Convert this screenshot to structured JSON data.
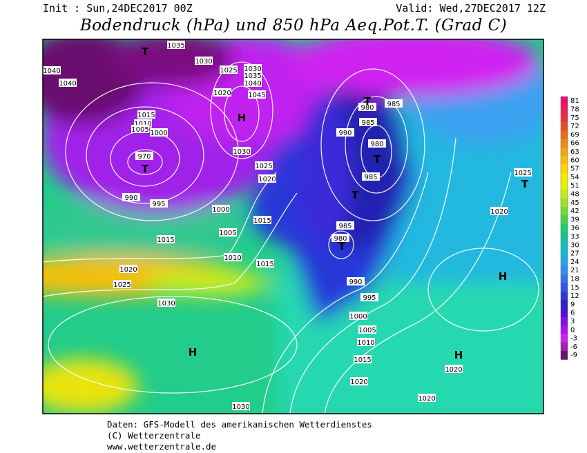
{
  "header": {
    "init": "Init : Sun,24DEC2017 00Z",
    "valid": "Valid: Wed,27DEC2017 12Z",
    "title": "Bodendruck (hPa) und 850 hPa Aeq.Pot.T. (Grad C)"
  },
  "map": {
    "isobar_labels": [
      1035,
      1030,
      1040,
      1040,
      1025,
      1030,
      1035,
      1040,
      1045,
      1020,
      1015,
      1010,
      1005,
      1000,
      970,
      990,
      995,
      1030,
      1025,
      1020,
      1000,
      1005,
      1015,
      1015,
      1010,
      1015,
      1020,
      1025,
      1030,
      990,
      985,
      980,
      985,
      980,
      985,
      985,
      980,
      990,
      995,
      1000,
      1005,
      1010,
      1015,
      1020,
      1020,
      1020,
      1020,
      1025,
      1030
    ],
    "centers": [
      "T",
      "T",
      "H",
      "T",
      "T",
      "T",
      "T",
      "T",
      "H",
      "H",
      "H"
    ]
  },
  "colorbar": {
    "labels": [
      81,
      78,
      75,
      72,
      69,
      66,
      63,
      60,
      57,
      54,
      51,
      48,
      45,
      42,
      39,
      36,
      33,
      30,
      27,
      24,
      21,
      18,
      15,
      12,
      9,
      6,
      3,
      0,
      -3,
      -6,
      -9
    ],
    "colors": [
      "#e8106e",
      "#e8205a",
      "#e83040",
      "#e84a2a",
      "#ec6a1e",
      "#f08a14",
      "#f4a40c",
      "#f8bc08",
      "#fcd404",
      "#f8e800",
      "#e4f000",
      "#c4ec10",
      "#9ce420",
      "#70dc30",
      "#44d44c",
      "#20cc6c",
      "#10c490",
      "#10c0b4",
      "#10b8d4",
      "#20a8e8",
      "#3090f0",
      "#3474f0",
      "#3058e8",
      "#2c3cdc",
      "#3020c8",
      "#5010d8",
      "#8010e8",
      "#b010f0",
      "#d020f0",
      "#a020b0",
      "#6a1070"
    ]
  },
  "footer": {
    "lines": [
      "Daten: GFS-Modell des amerikanischen Wetterdienstes",
      "(C) Wetterzentrale",
      "www.wetterzentrale.de"
    ]
  }
}
